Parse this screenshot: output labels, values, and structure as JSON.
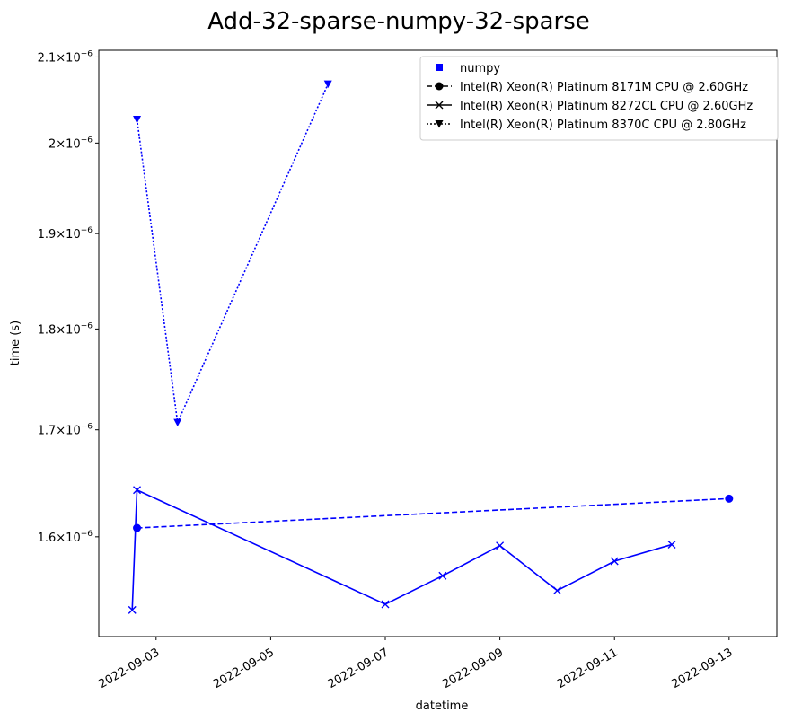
{
  "chart_data": {
    "type": "line",
    "title": "Add-32-sparse-numpy-32-sparse",
    "xlabel": "datetime",
    "ylabel": "time (s)",
    "yscale": "log",
    "xlim": [
      "2022-09-02T00:00",
      "2022-09-13T20:00"
    ],
    "ylim": [
      1.512e-06,
      2.108e-06
    ],
    "grid": false,
    "legend_position": "top-right",
    "color": "#0000ff",
    "x_ticks": [
      {
        "value": "2022-09-03",
        "label": "2022-09-03"
      },
      {
        "value": "2022-09-05",
        "label": "2022-09-05"
      },
      {
        "value": "2022-09-07",
        "label": "2022-09-07"
      },
      {
        "value": "2022-09-09",
        "label": "2022-09-09"
      },
      {
        "value": "2022-09-11",
        "label": "2022-09-11"
      },
      {
        "value": "2022-09-13",
        "label": "2022-09-13"
      }
    ],
    "y_ticks": [
      {
        "value": 1.6e-06,
        "mant": "1.6",
        "exp": "−6"
      },
      {
        "value": 1.7e-06,
        "mant": "1.7",
        "exp": "−6"
      },
      {
        "value": 1.8e-06,
        "mant": "1.8",
        "exp": "−6"
      },
      {
        "value": 1.9e-06,
        "mant": "1.9",
        "exp": "−6"
      },
      {
        "value": 2e-06,
        "mant": "2",
        "exp": "−6"
      },
      {
        "value": 2.1e-06,
        "mant": "2.1",
        "exp": "−6"
      }
    ],
    "legend": [
      {
        "label": "numpy",
        "marker": "square",
        "line": "none"
      },
      {
        "label": "Intel(R) Xeon(R) Platinum 8171M CPU @ 2.60GHz",
        "marker": "circle",
        "line": "dashed"
      },
      {
        "label": "Intel(R) Xeon(R) Platinum 8272CL CPU @ 2.60GHz",
        "marker": "x",
        "line": "solid"
      },
      {
        "label": "Intel(R) Xeon(R) Platinum 8370C CPU @ 2.80GHz",
        "marker": "triangle-down",
        "line": "dotted"
      }
    ],
    "series": [
      {
        "name": "Intel(R) Xeon(R) Platinum 8171M CPU @ 2.60GHz",
        "marker": "circle",
        "line": "dashed",
        "points": [
          {
            "x": "2022-09-02T16:00",
            "y": 1.608e-06
          },
          {
            "x": "2022-09-13T00:00",
            "y": 1.635e-06
          }
        ]
      },
      {
        "name": "Intel(R) Xeon(R) Platinum 8272CL CPU @ 2.60GHz",
        "marker": "x",
        "line": "solid",
        "points": [
          {
            "x": "2022-09-02T14:00",
            "y": 1.535e-06
          },
          {
            "x": "2022-09-02T16:00",
            "y": 1.643e-06
          },
          {
            "x": "2022-09-07T00:00",
            "y": 1.54e-06
          },
          {
            "x": "2022-09-08T00:00",
            "y": 1.565e-06
          },
          {
            "x": "2022-09-09T00:00",
            "y": 1.592e-06
          },
          {
            "x": "2022-09-10T00:00",
            "y": 1.552e-06
          },
          {
            "x": "2022-09-11T00:00",
            "y": 1.578e-06
          },
          {
            "x": "2022-09-12T00:00",
            "y": 1.593e-06
          }
        ]
      },
      {
        "name": "Intel(R) Xeon(R) Platinum 8370C CPU @ 2.80GHz",
        "marker": "triangle-down",
        "line": "dotted",
        "points": [
          {
            "x": "2022-09-02T16:00",
            "y": 2.027e-06
          },
          {
            "x": "2022-09-03T09:00",
            "y": 1.707e-06
          },
          {
            "x": "2022-09-06T00:00",
            "y": 2.068e-06
          }
        ]
      }
    ]
  }
}
